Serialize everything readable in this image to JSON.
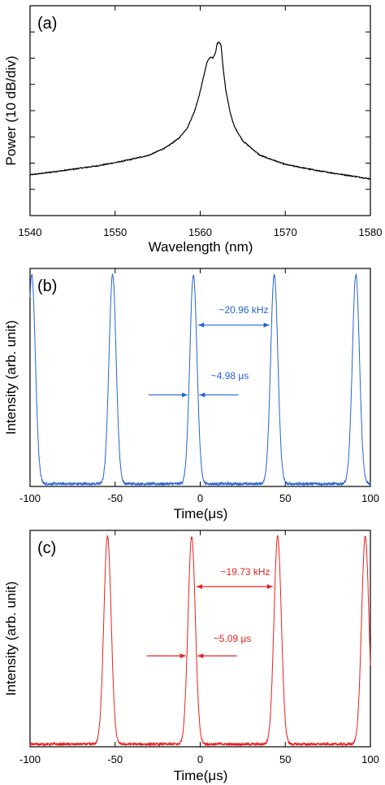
{
  "chart_data": [
    {
      "type": "line",
      "panel_label": "(a)",
      "xlabel": "Wavelength (nm)",
      "ylabel": "Power (10 dB/div)",
      "xlim": [
        1540,
        1580
      ],
      "ylim": [
        0,
        8
      ],
      "xticks": [
        "1540",
        "1550",
        "1560",
        "1570",
        "1580"
      ],
      "y_divisions": 8,
      "grid": false,
      "series": [
        {
          "color": "#000000",
          "x": [
            1540,
            1544,
            1548,
            1551,
            1554,
            1556,
            1557.5,
            1558.5,
            1559.3,
            1559.9,
            1560.4,
            1560.8,
            1561.2,
            1561.5,
            1561.8,
            1562.0,
            1562.2,
            1562.45,
            1562.7,
            1563.0,
            1563.5,
            1564,
            1565,
            1567,
            1570,
            1574,
            1578,
            1580
          ],
          "y": [
            1.55,
            1.72,
            1.9,
            2.08,
            2.3,
            2.6,
            2.95,
            3.35,
            3.95,
            4.6,
            5.3,
            5.85,
            6.05,
            6.0,
            6.2,
            6.55,
            6.62,
            6.5,
            5.6,
            4.8,
            3.95,
            3.4,
            2.85,
            2.3,
            1.95,
            1.7,
            1.5,
            1.4
          ]
        }
      ]
    },
    {
      "type": "line",
      "panel_label": "(b)",
      "xlabel": "Time(μs)",
      "ylabel": "Intensity (arb. unit)",
      "xlim": [
        -100,
        100
      ],
      "ylim": [
        0,
        1
      ],
      "xticks": [
        "-100",
        "-50",
        "0",
        "50",
        "100"
      ],
      "grid": false,
      "line_color": "#2563d6",
      "peak_centers": [
        -99,
        -51.5,
        -4.0,
        43.5,
        91.5
      ],
      "peak_height": 0.96,
      "pulse_width_us": 4.98,
      "annotations": {
        "frequency": "~20.96 kHz",
        "width": "~4.98 μs"
      }
    },
    {
      "type": "line",
      "panel_label": "(c)",
      "xlabel": "Time(μs)",
      "ylabel": "Intensity (arb. unit)",
      "xlim": [
        -100,
        100
      ],
      "ylim": [
        0,
        1
      ],
      "xticks": [
        "-100",
        "-50",
        "0",
        "50",
        "100"
      ],
      "grid": false,
      "line_color": "#e8201c",
      "peak_centers": [
        -54.5,
        -5.0,
        45.5,
        97.0
      ],
      "peak_height": 0.96,
      "pulse_width_us": 5.09,
      "annotations": {
        "frequency": "~19.73 kHz",
        "width": "~5.09 μs"
      }
    }
  ]
}
